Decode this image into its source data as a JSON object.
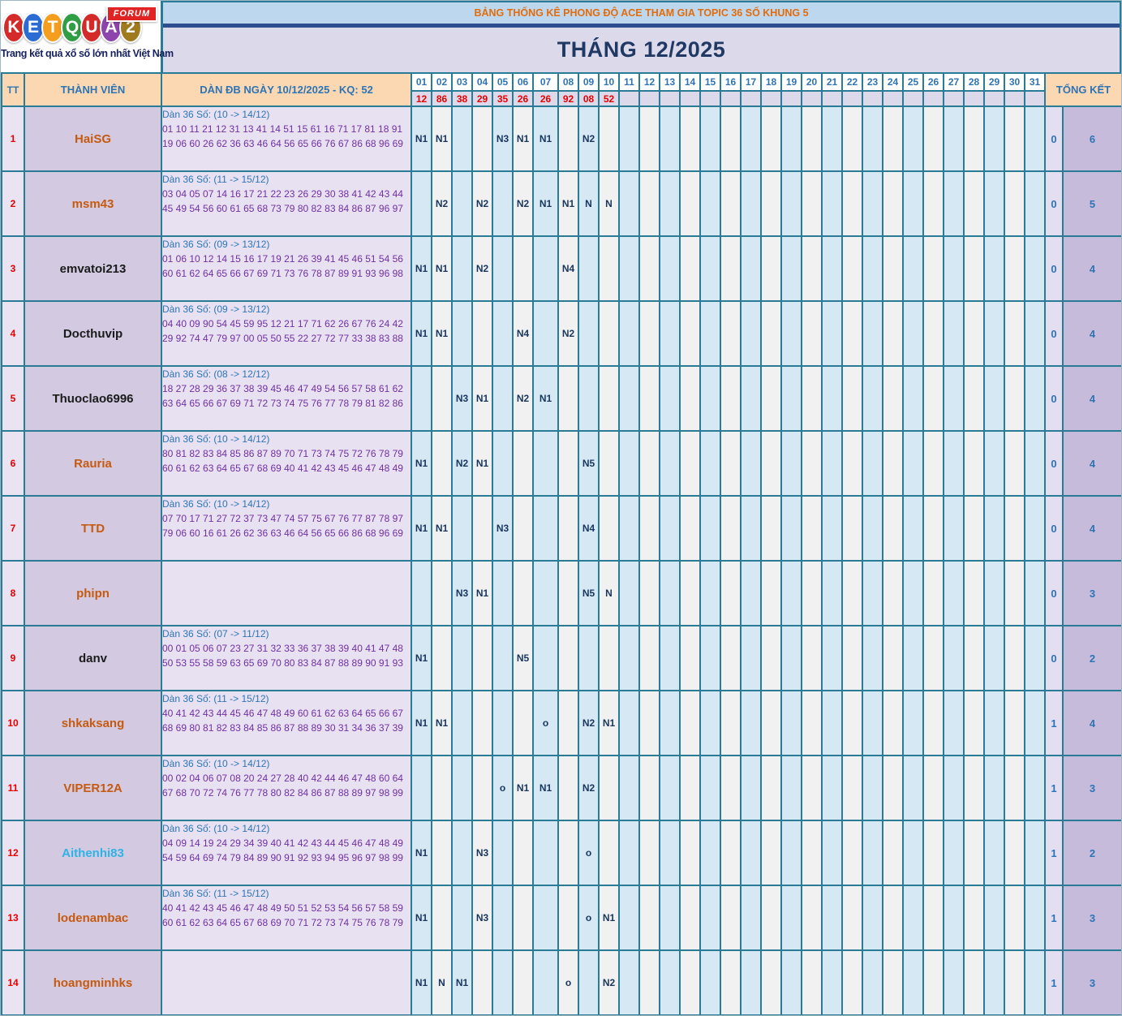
{
  "logo": {
    "letters": [
      {
        "ch": "K",
        "color": "#d42a2a"
      },
      {
        "ch": "E",
        "color": "#2b6bd4"
      },
      {
        "ch": "T",
        "color": "#f59d1d"
      },
      {
        "ch": "Q",
        "color": "#2f9e44"
      },
      {
        "ch": "U",
        "color": "#d42a2a"
      },
      {
        "ch": "A",
        "color": "#8e44ad"
      },
      {
        "ch": "2",
        "color": "#a07a1e"
      }
    ],
    "forum_badge": "FORUM",
    "tagline": "Trang kết quả xổ số lớn nhất Việt Nam"
  },
  "header": {
    "banner": "BẢNG THỐNG KÊ PHONG ĐỘ ACE THAM GIA TOPIC 36 SỐ KHUNG 5",
    "month_title": "THÁNG 12/2025"
  },
  "colors": {
    "border_teal": "#2a7b95",
    "banner_bg": "#bdd7ee",
    "banner_text": "#e36c0a",
    "month_bg": "#dcd9ea",
    "month_text": "#1f3864",
    "header_peach": "#fbd8b2",
    "header_blue": "#2e74b5",
    "result_red": "#e60000",
    "mark_navy": "#17365d",
    "dan_purple": "#7030a0"
  },
  "table": {
    "col_tt": "TT",
    "col_member": "THÀNH VIÊN",
    "col_dan": "DÀN ĐB NGÀY 10/12/2025 - KQ: 52",
    "col_total": "TỔNG KẾT",
    "days": [
      "01",
      "02",
      "03",
      "04",
      "05",
      "06",
      "07",
      "08",
      "09",
      "10",
      "11",
      "12",
      "13",
      "14",
      "15",
      "16",
      "17",
      "18",
      "19",
      "20",
      "21",
      "22",
      "23",
      "24",
      "25",
      "26",
      "27",
      "28",
      "29",
      "30",
      "31"
    ],
    "day_results": [
      "12",
      "86",
      "38",
      "29",
      "35",
      "26",
      "26",
      "92",
      "08",
      "52",
      "",
      "",
      "",
      "",
      "",
      "",
      "",
      "",
      "",
      "",
      "",
      "",
      "",
      "",
      "",
      "",
      "",
      "",
      "",
      "",
      ""
    ],
    "rows": [
      {
        "tt": "1",
        "member": "HaiSG",
        "member_color": "#c55a11",
        "dan_label": "Dàn 36 Số: (10 -> 14/12)",
        "dan_numbers": "01 10 11 21 12 31 13 41 14 51 15 61 16 71 17 81 18 91 19 06 60 26 62 36 63 46 64 56 65 66 76 67 86 68 96 69",
        "marks": {
          "01": "N1",
          "02": "N1",
          "05": "N3",
          "06": "N1",
          "07": "N1",
          "09": "N2"
        },
        "total1": "0",
        "total2": "6"
      },
      {
        "tt": "2",
        "member": "msm43",
        "member_color": "#c55a11",
        "dan_label": "Dàn 36 Số: (11 -> 15/12)",
        "dan_numbers": "03 04 05 07 14 16 17 21 22 23 26 29 30 38 41 42 43 44 45 49 54 56 60 61 65 68 73 79 80 82 83 84 86 87 96 97",
        "marks": {
          "02": "N2",
          "04": "N2",
          "06": "N2",
          "07": "N1",
          "08": "N1",
          "09": "N",
          "10": "N"
        },
        "total1": "0",
        "total2": "5"
      },
      {
        "tt": "3",
        "member": "emvatoi213",
        "member_color": "#1b1b1b",
        "dan_label": "Dàn 36 Số: (09 -> 13/12)",
        "dan_numbers": "01 06 10 12 14 15 16 17 19 21 26 39 41 45 46 51 54 56 60 61 62 64 65 66 67 69 71 73 76 78 87 89 91 93 96 98",
        "marks": {
          "01": "N1",
          "02": "N1",
          "04": "N2",
          "08": "N4"
        },
        "total1": "0",
        "total2": "4"
      },
      {
        "tt": "4",
        "member": "Docthuvip",
        "member_color": "#1b1b1b",
        "dan_label": "Dàn 36 Số: (09 -> 13/12)",
        "dan_numbers": "04 40 09 90 54 45 59 95 12 21 17 71 62 26 67 76 24 42 29 92 74 47 79 97 00 05 50 55 22 27 72 77 33 38 83 88",
        "marks": {
          "01": "N1",
          "02": "N1",
          "06": "N4",
          "08": "N2"
        },
        "total1": "0",
        "total2": "4"
      },
      {
        "tt": "5",
        "member": "Thuoclao6996",
        "member_color": "#1b1b1b",
        "dan_label": "Dàn 36 Số: (08 -> 12/12)",
        "dan_numbers": "18 27 28 29 36 37 38 39 45 46 47 49 54 56 57 58 61 62 63 64 65 66 67 69 71 72 73 74 75 76 77 78 79 81 82 86",
        "marks": {
          "03": "N3",
          "04": "N1",
          "06": "N2",
          "07": "N1"
        },
        "total1": "0",
        "total2": "4"
      },
      {
        "tt": "6",
        "member": "Rauria",
        "member_color": "#c55a11",
        "dan_label": "Dàn 36 Số: (10 -> 14/12)",
        "dan_numbers": "80 81 82 83 84 85 86 87 89 70 71 73 74 75 72 76 78 79 60 61 62 63 64 65 67 68 69 40 41 42 43 45 46 47 48 49",
        "marks": {
          "01": "N1",
          "03": "N2",
          "04": "N1",
          "09": "N5"
        },
        "total1": "0",
        "total2": "4"
      },
      {
        "tt": "7",
        "member": "TTD",
        "member_color": "#c55a11",
        "dan_label": "Dàn 36 Số: (10 -> 14/12)",
        "dan_numbers": "07 70 17 71 27 72 37 73 47 74 57 75 67 76 77 87 78 97 79 06 60 16 61 26 62 36 63 46 64 56 65 66 86 68 96 69",
        "marks": {
          "01": "N1",
          "02": "N1",
          "05": "N3",
          "09": "N4"
        },
        "total1": "0",
        "total2": "4"
      },
      {
        "tt": "8",
        "member": "phipn",
        "member_color": "#c55a11",
        "dan_label": "",
        "dan_numbers": "",
        "marks": {
          "03": "N3",
          "04": "N1",
          "09": "N5",
          "10": "N"
        },
        "total1": "0",
        "total2": "3"
      },
      {
        "tt": "9",
        "member": "danv",
        "member_color": "#1b1b1b",
        "dan_label": "Dàn 36 Số: (07 -> 11/12)",
        "dan_numbers": "00 01 05 06 07 23 27 31 32 33 36 37 38 39 40 41 47 48 50 53 55 58 59 63 65 69 70 80 83 84 87 88 89 90 91 93",
        "marks": {
          "01": "N1",
          "06": "N5"
        },
        "total1": "0",
        "total2": "2"
      },
      {
        "tt": "10",
        "member": "shkaksang",
        "member_color": "#c55a11",
        "dan_label": "Dàn 36 Số: (11 -> 15/12)",
        "dan_numbers": "40 41 42 43 44 45 46 47 48 49 60 61 62 63 64 65 66 67 68 69 80 81 82 83 84 85 86 87 88 89 30 31 34 36 37 39",
        "marks": {
          "01": "N1",
          "02": "N1",
          "07": "o",
          "09": "N2",
          "10": "N1"
        },
        "total1": "1",
        "total2": "4"
      },
      {
        "tt": "11",
        "member": "VIPER12A",
        "member_color": "#c55a11",
        "dan_label": "Dàn 36 Số: (10 -> 14/12)",
        "dan_numbers": "00 02 04 06 07 08 20 24 27 28 40 42 44 46 47 48 60 64 67 68 70 72 74 76 77 78 80 82 84 86 87 88 89 97 98 99",
        "marks": {
          "05": "o",
          "06": "N1",
          "07": "N1",
          "09": "N2"
        },
        "total1": "1",
        "total2": "3"
      },
      {
        "tt": "12",
        "member": "Aithenhi83",
        "member_color": "#2eb3e6",
        "dan_label": "Dàn 36 Số: (10 -> 14/12)",
        "dan_numbers": "04 09 14 19 24 29 34 39 40 41 42 43 44 45 46 47 48 49 54 59 64 69 74 79 84 89 90 91 92 93 94 95 96 97 98 99",
        "marks": {
          "01": "N1",
          "04": "N3",
          "09": "o"
        },
        "total1": "1",
        "total2": "2"
      },
      {
        "tt": "13",
        "member": "lodenambac",
        "member_color": "#c55a11",
        "dan_label": "Dàn 36 Số: (11 -> 15/12)",
        "dan_numbers": "40 41 42 43 45 46 47 48 49 50 51 52 53 54 56 57 58 59 60 61 62 63 64 65 67 68 69 70 71 72 73 74 75 76 78 79",
        "marks": {
          "01": "N1",
          "04": "N3",
          "09": "o",
          "10": "N1"
        },
        "total1": "1",
        "total2": "3"
      },
      {
        "tt": "14",
        "member": "hoangminhks",
        "member_color": "#c55a11",
        "dan_label": "",
        "dan_numbers": "",
        "marks": {
          "01": "N1",
          "02": "N",
          "03": "N1",
          "08": "o",
          "10": "N2"
        },
        "total1": "1",
        "total2": "3"
      }
    ]
  }
}
